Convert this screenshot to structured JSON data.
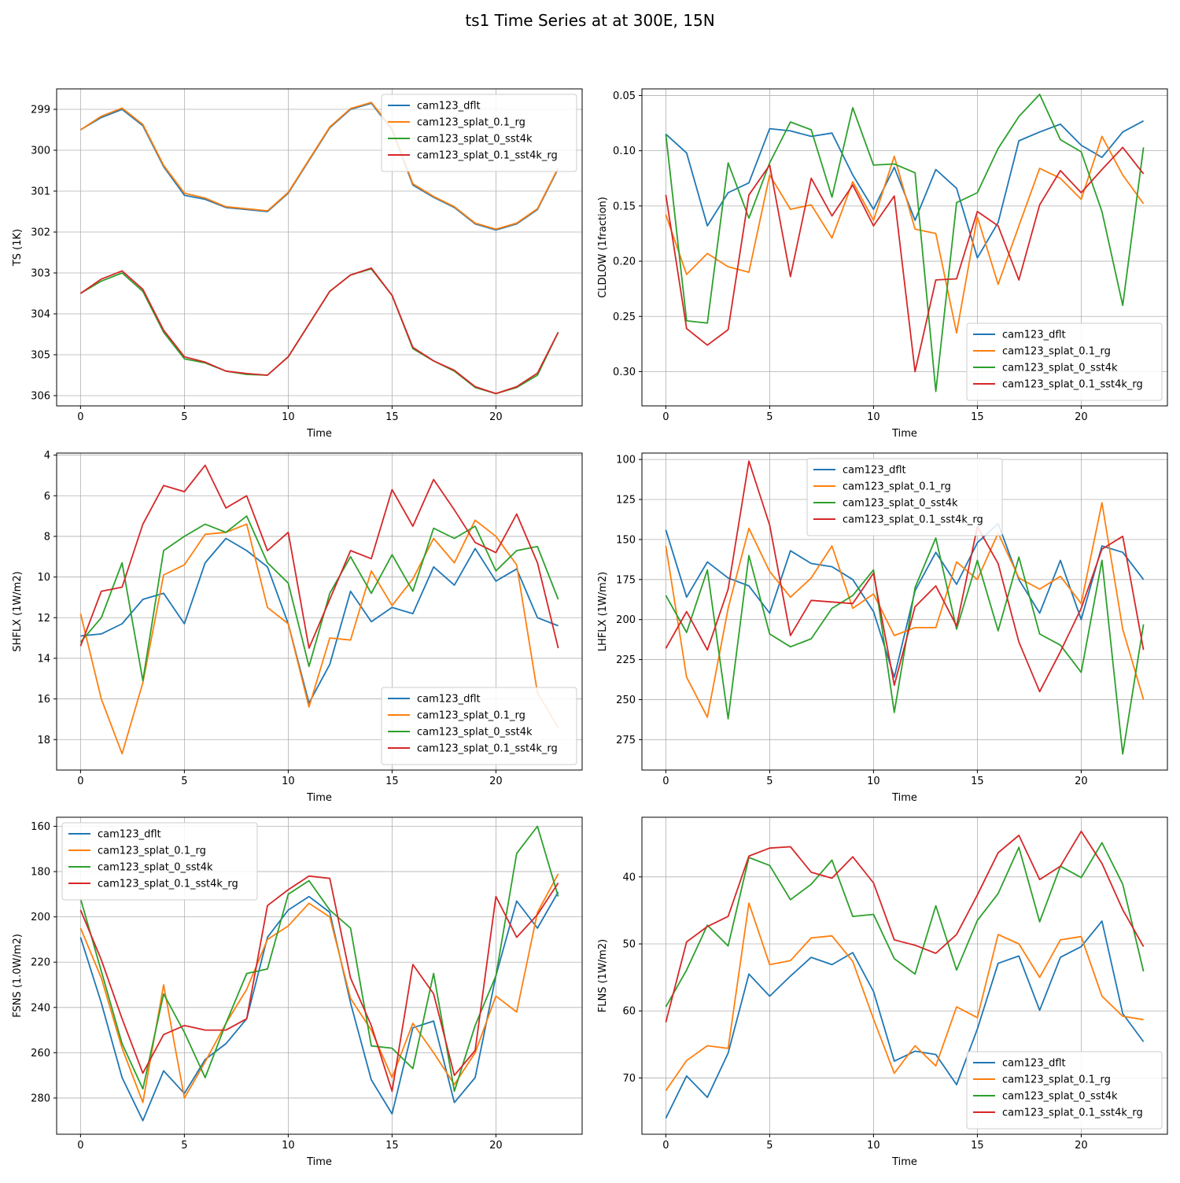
{
  "title": "ts1 Time Series at at 300E, 15N",
  "colors": {
    "cam123_dflt": "#1f77b4",
    "cam123_splat_0.1_rg": "#ff7f0e",
    "cam123_splat_0_sst4k": "#2ca02c",
    "cam123_splat_0.1_sst4k_rg": "#d62728"
  },
  "chart_data": [
    {
      "type": "line",
      "title": "",
      "xlabel": "Time",
      "ylabel": "TS (1K)",
      "xlim": [
        -1.15,
        24.15
      ],
      "ylim": [
        306.25,
        298.5
      ],
      "y_inverted": true,
      "xticks": [
        0,
        5,
        10,
        15,
        20
      ],
      "yticks": [
        299,
        300,
        301,
        302,
        303,
        304,
        305,
        306
      ],
      "grid": true,
      "legend_loc": "upper right",
      "x": [
        0,
        1,
        2,
        3,
        4,
        5,
        6,
        7,
        8,
        9,
        10,
        11,
        12,
        13,
        14,
        15,
        16,
        17,
        18,
        19,
        20,
        21,
        22,
        23
      ],
      "series": [
        {
          "name": "cam123_dflt",
          "values": [
            299.5,
            299.2,
            299.0,
            299.4,
            300.4,
            301.1,
            301.2,
            301.4,
            301.45,
            301.5,
            301.05,
            300.25,
            299.45,
            299.0,
            298.85,
            299.5,
            300.85,
            301.15,
            301.4,
            301.8,
            301.95,
            301.8,
            301.45,
            300.45
          ]
        },
        {
          "name": "cam123_splat_0.1_rg",
          "values": [
            299.5,
            299.17,
            298.97,
            299.37,
            300.37,
            301.05,
            301.17,
            301.38,
            301.43,
            301.48,
            301.03,
            300.23,
            299.43,
            298.98,
            298.83,
            299.47,
            300.82,
            301.13,
            301.38,
            301.78,
            301.93,
            301.78,
            301.43,
            300.43
          ]
        },
        {
          "name": "cam123_splat_0_sst4k",
          "values": [
            303.5,
            303.2,
            303.0,
            303.45,
            304.45,
            305.1,
            305.2,
            305.4,
            305.48,
            305.5,
            305.05,
            304.25,
            303.45,
            303.05,
            302.9,
            303.55,
            304.85,
            305.15,
            305.4,
            305.8,
            305.95,
            305.8,
            305.5,
            304.45
          ]
        },
        {
          "name": "cam123_splat_0.1_sst4k_rg",
          "values": [
            303.5,
            303.15,
            302.95,
            303.4,
            304.4,
            305.05,
            305.18,
            305.4,
            305.46,
            305.5,
            305.05,
            304.25,
            303.45,
            303.05,
            302.88,
            303.55,
            304.82,
            305.15,
            305.38,
            305.78,
            305.95,
            305.78,
            305.45,
            304.45
          ]
        }
      ]
    },
    {
      "type": "line",
      "title": "",
      "xlabel": "Time",
      "ylabel": "CLDLOW (1fraction)",
      "xlim": [
        -1.15,
        24.15
      ],
      "ylim": [
        0.331,
        0.044
      ],
      "y_inverted": true,
      "xticks": [
        0,
        5,
        10,
        15,
        20
      ],
      "yticks": [
        0.05,
        0.1,
        0.15,
        0.2,
        0.25,
        0.3
      ],
      "tick_decimals": 2,
      "grid": true,
      "legend_loc": "lower right",
      "x": [
        0,
        1,
        2,
        3,
        4,
        5,
        6,
        7,
        8,
        9,
        10,
        11,
        12,
        13,
        14,
        15,
        16,
        17,
        18,
        19,
        20,
        21,
        22,
        23
      ],
      "series": [
        {
          "name": "cam123_dflt",
          "values": [
            0.085,
            0.102,
            0.168,
            0.138,
            0.129,
            0.08,
            0.082,
            0.087,
            0.084,
            0.122,
            0.153,
            0.115,
            0.163,
            0.117,
            0.134,
            0.197,
            0.165,
            0.091,
            0.083,
            0.076,
            0.095,
            0.106,
            0.083,
            0.073
          ]
        },
        {
          "name": "cam123_splat_0.1_rg",
          "values": [
            0.158,
            0.212,
            0.193,
            0.205,
            0.21,
            0.122,
            0.153,
            0.149,
            0.179,
            0.128,
            0.163,
            0.105,
            0.171,
            0.175,
            0.265,
            0.16,
            0.221,
            0.168,
            0.116,
            0.125,
            0.144,
            0.087,
            0.122,
            0.148
          ]
        },
        {
          "name": "cam123_splat_0_sst4k",
          "values": [
            0.085,
            0.254,
            0.256,
            0.111,
            0.161,
            0.111,
            0.074,
            0.081,
            0.142,
            0.061,
            0.113,
            0.112,
            0.12,
            0.318,
            0.147,
            0.138,
            0.098,
            0.069,
            0.049,
            0.09,
            0.101,
            0.155,
            0.24,
            0.097
          ]
        },
        {
          "name": "cam123_splat_0.1_sst4k_rg",
          "values": [
            0.14,
            0.261,
            0.276,
            0.262,
            0.14,
            0.113,
            0.214,
            0.125,
            0.159,
            0.131,
            0.168,
            0.141,
            0.3,
            0.217,
            0.216,
            0.155,
            0.168,
            0.217,
            0.149,
            0.118,
            0.138,
            0.117,
            0.097,
            0.121
          ]
        }
      ]
    },
    {
      "type": "line",
      "title": "",
      "xlabel": "Time",
      "ylabel": "SHFLX (1W/m2)",
      "xlim": [
        -1.15,
        24.15
      ],
      "ylim": [
        19.5,
        3.9
      ],
      "y_inverted": true,
      "xticks": [
        0,
        5,
        10,
        15,
        20
      ],
      "yticks": [
        4,
        6,
        8,
        10,
        12,
        14,
        16,
        18
      ],
      "grid": true,
      "legend_loc": "lower right",
      "x": [
        0,
        1,
        2,
        3,
        4,
        5,
        6,
        7,
        8,
        9,
        10,
        11,
        12,
        13,
        14,
        15,
        16,
        17,
        18,
        19,
        20,
        21,
        22,
        23
      ],
      "series": [
        {
          "name": "cam123_dflt",
          "values": [
            12.9,
            12.8,
            12.3,
            11.1,
            10.8,
            12.3,
            9.3,
            8.1,
            8.7,
            9.5,
            12.3,
            16.2,
            14.3,
            10.7,
            12.2,
            11.5,
            11.8,
            9.5,
            10.4,
            8.6,
            10.2,
            9.6,
            12.0,
            12.4
          ]
        },
        {
          "name": "cam123_splat_0.1_rg",
          "values": [
            11.8,
            16.0,
            18.7,
            15.2,
            9.9,
            9.4,
            7.9,
            7.8,
            7.4,
            11.5,
            12.3,
            16.4,
            13.0,
            13.1,
            9.7,
            11.4,
            10.1,
            8.1,
            9.3,
            7.2,
            8.0,
            9.4,
            15.7,
            17.4
          ]
        },
        {
          "name": "cam123_splat_0_sst4k",
          "values": [
            13.2,
            12.0,
            9.3,
            15.1,
            8.7,
            8.0,
            7.4,
            7.8,
            7.0,
            9.3,
            10.3,
            14.4,
            10.8,
            9.0,
            10.8,
            8.9,
            10.7,
            7.6,
            8.1,
            7.5,
            9.7,
            8.7,
            8.5,
            11.1
          ]
        },
        {
          "name": "cam123_splat_0.1_sst4k_rg",
          "values": [
            13.4,
            10.7,
            10.5,
            7.4,
            5.5,
            5.8,
            4.5,
            6.6,
            6.0,
            8.7,
            7.8,
            13.5,
            11.1,
            8.7,
            9.1,
            5.7,
            7.5,
            5.2,
            6.7,
            8.3,
            8.8,
            6.9,
            9.3,
            13.5
          ]
        }
      ]
    },
    {
      "type": "line",
      "title": "",
      "xlabel": "Time",
      "ylabel": "LHFLX (1W/m2)",
      "xlim": [
        -1.15,
        24.15
      ],
      "ylim": [
        294,
        96
      ],
      "y_inverted": true,
      "xticks": [
        0,
        5,
        10,
        15,
        20
      ],
      "yticks": [
        100,
        125,
        150,
        175,
        200,
        225,
        250,
        275
      ],
      "grid": true,
      "legend_loc": "upper center",
      "x": [
        0,
        1,
        2,
        3,
        4,
        5,
        6,
        7,
        8,
        9,
        10,
        11,
        12,
        13,
        14,
        15,
        16,
        17,
        18,
        19,
        20,
        21,
        22,
        23
      ],
      "series": [
        {
          "name": "cam123_dflt",
          "values": [
            144,
            186,
            164,
            174,
            179,
            196,
            157,
            165,
            167,
            175,
            195,
            236,
            182,
            158,
            178,
            152,
            140,
            175,
            196,
            163,
            200,
            154,
            158,
            175
          ]
        },
        {
          "name": "cam123_splat_0.1_rg",
          "values": [
            154,
            236,
            261,
            193,
            143,
            170,
            186,
            174,
            154,
            193,
            184,
            210,
            205,
            205,
            164,
            175,
            146,
            174,
            181,
            173,
            190,
            127,
            206,
            250
          ]
        },
        {
          "name": "cam123_splat_0_sst4k",
          "values": [
            185,
            208,
            169,
            262,
            160,
            209,
            217,
            212,
            193,
            185,
            169,
            258,
            180,
            149,
            206,
            163,
            207,
            161,
            209,
            216,
            233,
            163,
            284,
            203
          ]
        },
        {
          "name": "cam123_splat_0.1_sst4k_rg",
          "values": [
            218,
            195,
            219,
            181,
            101,
            141,
            210,
            188,
            189,
            190,
            171,
            241,
            192,
            179,
            204,
            142,
            165,
            214,
            245,
            220,
            193,
            156,
            148,
            219
          ]
        }
      ]
    },
    {
      "type": "line",
      "title": "",
      "xlabel": "Time",
      "ylabel": "FSNS (1.0W/m2)",
      "xlim": [
        -1.15,
        24.15
      ],
      "ylim": [
        296,
        156
      ],
      "y_inverted": true,
      "xticks": [
        0,
        5,
        10,
        15,
        20
      ],
      "yticks": [
        160,
        180,
        200,
        220,
        240,
        260,
        280
      ],
      "grid": true,
      "legend_loc": "upper left",
      "x": [
        0,
        1,
        2,
        3,
        4,
        5,
        6,
        7,
        8,
        9,
        10,
        11,
        12,
        13,
        14,
        15,
        16,
        17,
        18,
        19,
        20,
        21,
        22,
        23
      ],
      "series": [
        {
          "name": "cam123_dflt",
          "values": [
            209,
            238,
            271,
            290,
            268,
            278,
            263,
            256,
            245,
            209,
            197,
            191,
            198,
            238,
            272,
            287,
            249,
            246,
            282,
            271,
            226,
            193,
            205,
            189
          ]
        },
        {
          "name": "cam123_splat_0.1_rg",
          "values": [
            205,
            227,
            258,
            282,
            230,
            280,
            264,
            247,
            232,
            210,
            204,
            194,
            200,
            236,
            250,
            271,
            247,
            260,
            274,
            260,
            235,
            242,
            198,
            181
          ]
        },
        {
          "name": "cam123_splat_0_sst4k",
          "values": [
            192,
            224,
            256,
            276,
            234,
            251,
            271,
            247,
            225,
            223,
            190,
            184,
            197,
            205,
            257,
            258,
            267,
            225,
            277,
            248,
            226,
            172,
            160,
            191
          ]
        },
        {
          "name": "cam123_splat_0.1_sst4k_rg",
          "values": [
            197,
            219,
            245,
            269,
            252,
            248,
            250,
            250,
            245,
            195,
            188,
            182,
            183,
            227,
            248,
            277,
            221,
            234,
            270,
            259,
            191,
            209,
            199,
            185
          ]
        }
      ]
    },
    {
      "type": "line",
      "title": "",
      "xlabel": "Time",
      "ylabel": "FLNS (1W/m2)",
      "xlim": [
        -1.15,
        24.15
      ],
      "ylim": [
        78.4,
        31.1
      ],
      "y_inverted": true,
      "xticks": [
        0,
        5,
        10,
        15,
        20
      ],
      "yticks": [
        40,
        50,
        60,
        70
      ],
      "grid": true,
      "legend_loc": "lower right",
      "x": [
        0,
        1,
        2,
        3,
        4,
        5,
        6,
        7,
        8,
        9,
        10,
        11,
        12,
        13,
        14,
        15,
        16,
        17,
        18,
        19,
        20,
        21,
        22,
        23
      ],
      "series": [
        {
          "name": "cam123_dflt",
          "values": [
            76.0,
            69.7,
            72.9,
            66.3,
            54.5,
            57.8,
            54.8,
            52.0,
            53.1,
            51.3,
            57.1,
            67.5,
            66.0,
            66.5,
            71.0,
            62.7,
            52.9,
            51.8,
            59.9,
            52.0,
            50.4,
            46.6,
            60.4,
            64.6
          ]
        },
        {
          "name": "cam123_splat_0.1_rg",
          "values": [
            71.9,
            67.4,
            65.2,
            65.6,
            43.9,
            53.1,
            52.5,
            49.1,
            48.8,
            52.6,
            61.2,
            69.3,
            65.2,
            68.2,
            59.4,
            61.0,
            48.6,
            50.0,
            55.0,
            49.4,
            48.9,
            57.8,
            60.8,
            61.3
          ]
        },
        {
          "name": "cam123_splat_0_sst4k",
          "values": [
            59.4,
            53.9,
            47.2,
            50.3,
            37.1,
            38.3,
            43.4,
            41.1,
            37.5,
            45.9,
            45.6,
            52.2,
            54.5,
            44.3,
            53.9,
            46.5,
            42.5,
            35.6,
            46.7,
            38.4,
            40.1,
            34.9,
            41.1,
            54.1
          ]
        },
        {
          "name": "cam123_splat_0.1_sst4k_rg",
          "values": [
            61.7,
            49.7,
            47.4,
            45.9,
            36.9,
            35.7,
            35.5,
            39.3,
            40.2,
            37.0,
            40.9,
            49.4,
            50.2,
            51.4,
            48.6,
            42.7,
            36.4,
            33.8,
            40.4,
            38.4,
            33.2,
            38.0,
            44.9,
            50.4
          ]
        }
      ]
    }
  ]
}
